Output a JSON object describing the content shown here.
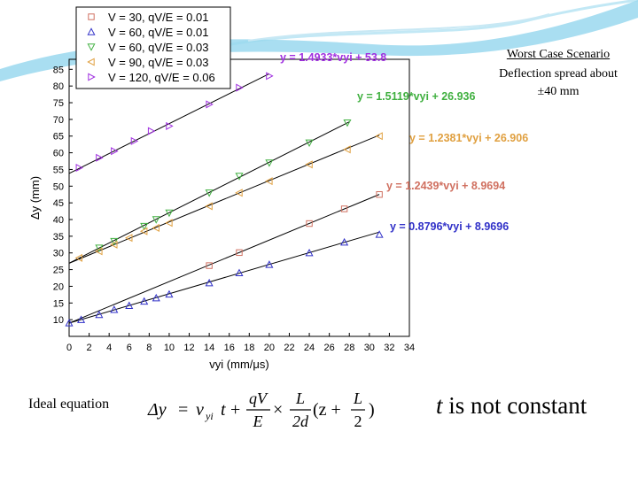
{
  "notes": {
    "title": "Worst Case Scenario",
    "line1": "Deflection spread about",
    "line2": "±40 mm"
  },
  "ideal_label": "Ideal equation",
  "t_note": {
    "var": "t",
    "rest": " is not constant"
  },
  "equation": {
    "lhs": "Δy",
    "eq": "=",
    "v": "v",
    "v_sub": "yi",
    "t": "t",
    "plus": "+",
    "frac1_num": "qV",
    "frac1_den": "E",
    "times": "×",
    "frac2_num": "L",
    "frac2_den": "2d",
    "paren": "(z +",
    "frac3_num": "L",
    "frac3_den": "2",
    "close": ")"
  },
  "colors": {
    "s1": "#d07060",
    "s2": "#3030c8",
    "s3": "#40b040",
    "s4": "#e0a040",
    "s5": "#a030e0",
    "fitline": "#000000",
    "ribbon": "#9ad8ee"
  },
  "chart_data": {
    "type": "scatter",
    "xlabel": "vyi (mm/μs)",
    "ylabel": "Δy (mm)",
    "xlim": [
      0,
      34
    ],
    "ylim": [
      5,
      88
    ],
    "xticks": [
      0,
      2,
      4,
      6,
      8,
      10,
      12,
      14,
      16,
      18,
      20,
      22,
      24,
      26,
      28,
      30,
      32,
      34
    ],
    "yticks": [
      10,
      15,
      20,
      25,
      30,
      35,
      40,
      45,
      50,
      55,
      60,
      65,
      70,
      75,
      80,
      85
    ],
    "grid": false,
    "legend_position": "top-left",
    "series": [
      {
        "name": "V = 30, qV/E = 0.01",
        "marker": "square",
        "color_key": "s1",
        "x": [
          14,
          17,
          24,
          27.5,
          31
        ],
        "y": [
          26.2,
          30.1,
          38.8,
          43.2,
          47.5
        ],
        "fit": {
          "label": "y = 1.2439*vyi + 8.9694",
          "slope": 1.2439,
          "intercept": 8.9694,
          "x_range": [
            0,
            31
          ]
        }
      },
      {
        "name": "V = 60, qV/E = 0.01",
        "marker": "triangle-up",
        "color_key": "s2",
        "x": [
          0,
          1.2,
          3,
          4.5,
          6,
          7.5,
          8.7,
          10,
          14,
          17,
          20,
          24,
          27.5,
          31
        ],
        "y": [
          9,
          10,
          11.5,
          13,
          14.2,
          15.5,
          16.5,
          17.6,
          21,
          24,
          26.5,
          30,
          33.2,
          35.5
        ],
        "fit": {
          "label": "y = 0.8796*vyi + 8.9696",
          "slope": 0.8796,
          "intercept": 8.9696,
          "x_range": [
            0,
            31
          ]
        }
      },
      {
        "name": "V = 60, qV/E = 0.03",
        "marker": "triangle-down",
        "color_key": "s3",
        "x": [
          3,
          4.5,
          7.5,
          8.7,
          10,
          14,
          17,
          20,
          24,
          27.8
        ],
        "y": [
          31.5,
          33.5,
          38,
          40,
          42,
          48,
          53,
          57,
          63,
          69
        ],
        "fit": {
          "label": "y = 1.5119*vyi + 26.936",
          "slope": 1.5119,
          "intercept": 26.936,
          "x_range": [
            0,
            28
          ]
        }
      },
      {
        "name": "V = 90, qV/E = 0.03",
        "marker": "triangle-left",
        "color_key": "s4",
        "x": [
          1,
          3,
          4.5,
          6,
          7.5,
          8.7,
          10,
          14,
          17,
          20,
          24,
          27.8,
          31
        ],
        "y": [
          28.5,
          30.5,
          32.5,
          34.5,
          36.5,
          37.5,
          39,
          44,
          48,
          51.5,
          56.5,
          61,
          65
        ],
        "fit": {
          "label": "y = 1.2381*vyi + 26.906",
          "slope": 1.2381,
          "intercept": 26.906,
          "x_range": [
            0,
            31
          ]
        }
      },
      {
        "name": "V = 120, qV/E = 0.06",
        "marker": "triangle-right",
        "color_key": "s5",
        "x": [
          1,
          3,
          4.5,
          6.5,
          8.2,
          10,
          14,
          17,
          20
        ],
        "y": [
          55.5,
          58.5,
          60.5,
          63.5,
          66.5,
          68,
          74.5,
          79.5,
          83
        ],
        "fit": {
          "label": "y = 1.4933*vyi + 53.8",
          "slope": 1.4933,
          "intercept": 53.8,
          "x_range": [
            0,
            20
          ]
        }
      }
    ]
  }
}
